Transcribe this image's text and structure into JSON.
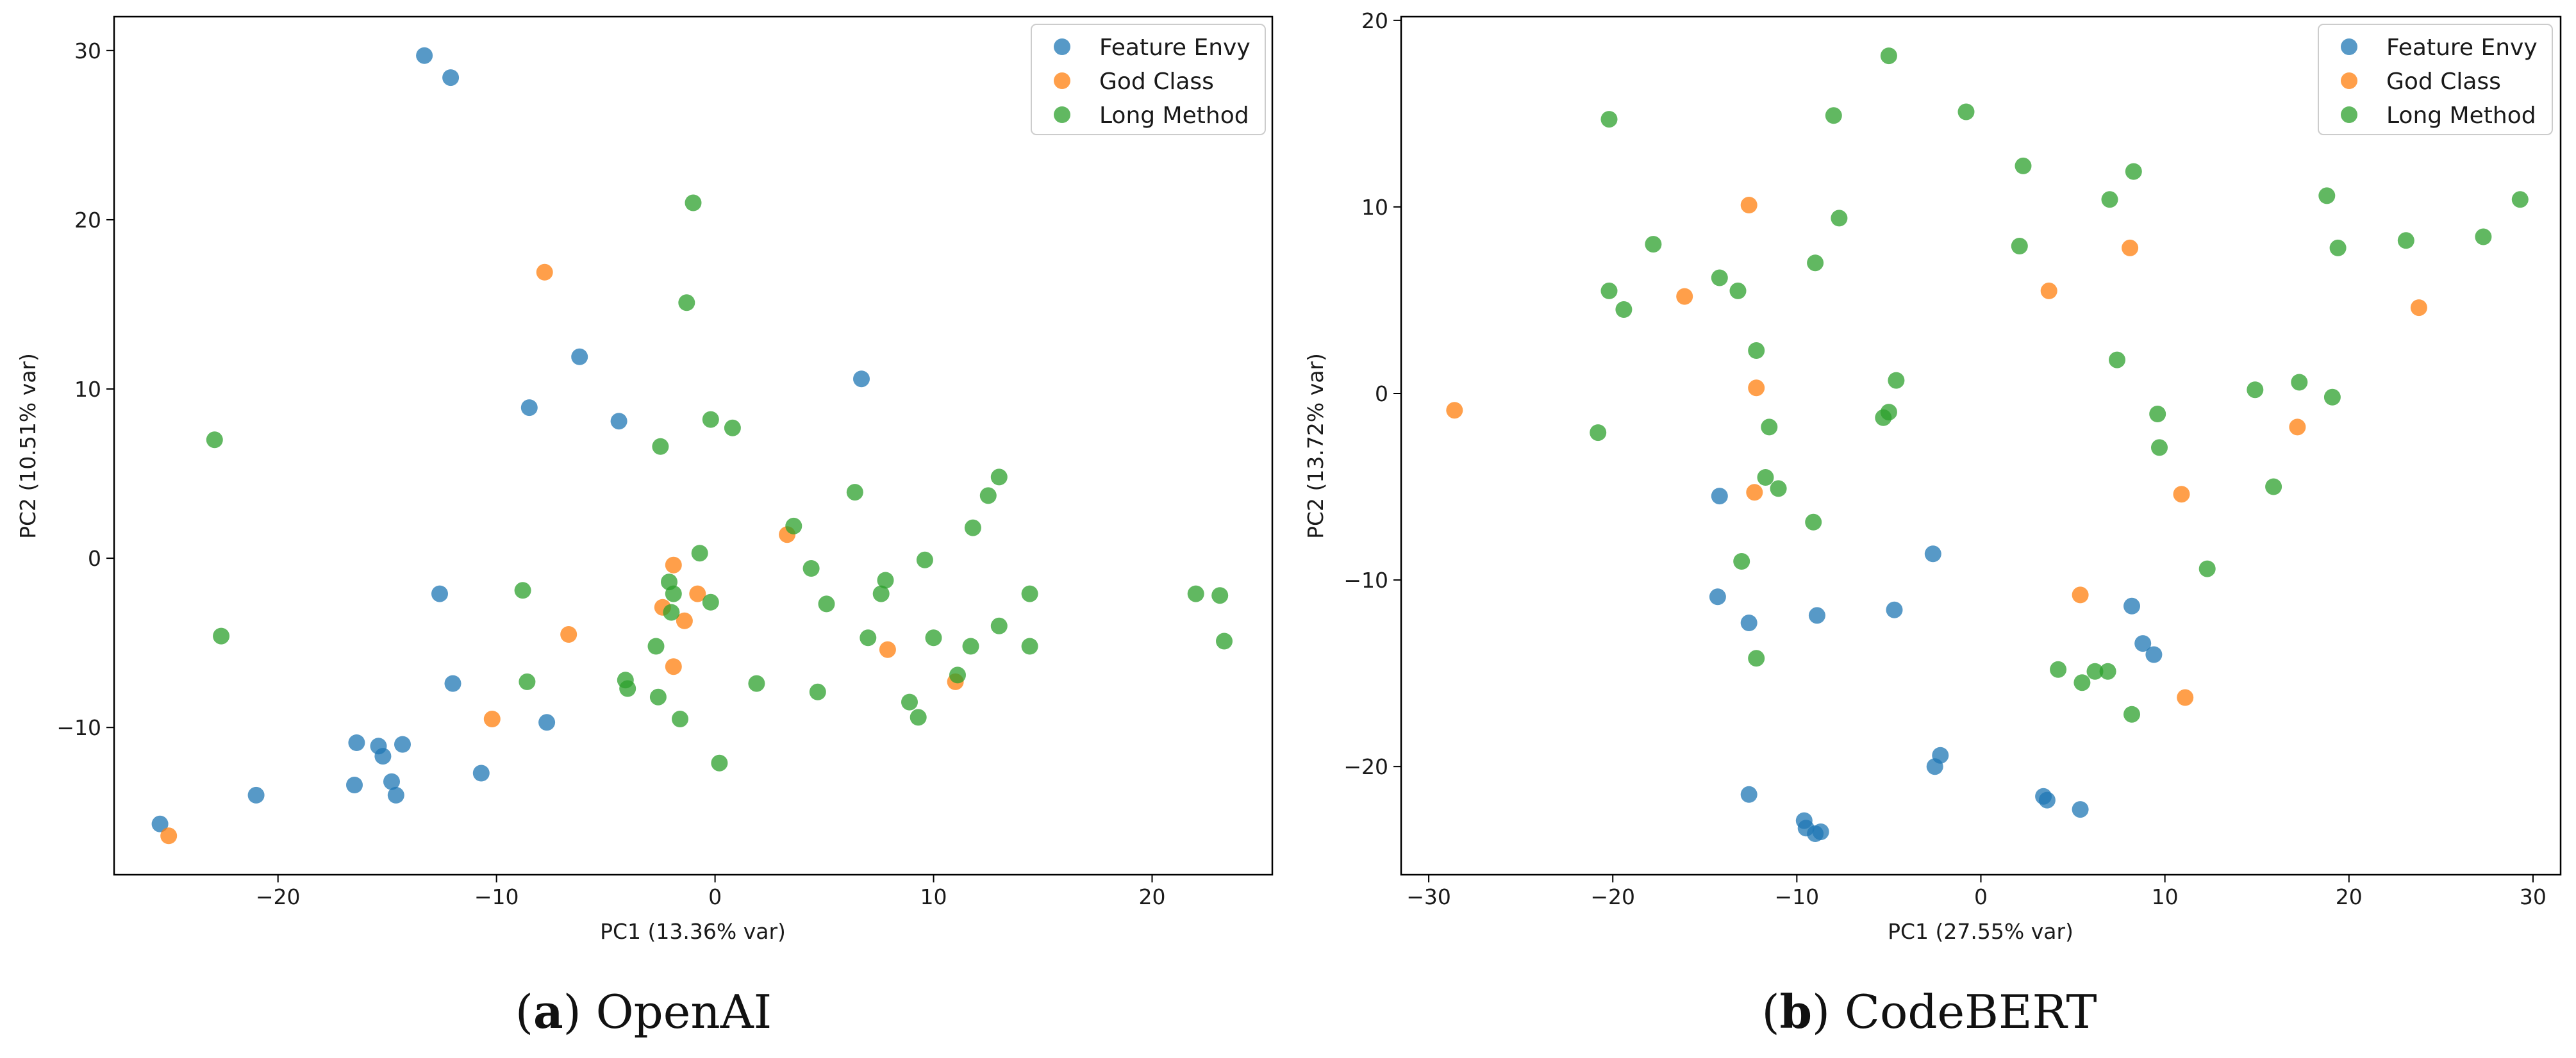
{
  "chart_data": [
    {
      "type": "scatter",
      "caption_letter": "a",
      "caption_text": "OpenAI",
      "title": "",
      "xlabel": "PC1 (13.36% var)",
      "ylabel": "PC2 (10.51% var)",
      "xlim": [
        -27.5,
        25.5
      ],
      "ylim": [
        -18.7,
        32.0
      ],
      "xticks": [
        -20,
        -10,
        0,
        10,
        20
      ],
      "yticks": [
        -10,
        0,
        10,
        20,
        30
      ],
      "grid": false,
      "legend_position": "top-right",
      "series": [
        {
          "name": "Feature Envy",
          "color": "#1f77b4",
          "points": [
            [
              -13.3,
              29.7
            ],
            [
              -12.1,
              28.4
            ],
            [
              -6.2,
              11.9
            ],
            [
              -8.5,
              8.9
            ],
            [
              -4.4,
              8.1
            ],
            [
              6.7,
              10.6
            ],
            [
              -12.6,
              -2.1
            ],
            [
              -12.0,
              -7.4
            ],
            [
              -7.7,
              -9.7
            ],
            [
              -10.7,
              -12.7
            ],
            [
              -16.4,
              -10.9
            ],
            [
              -15.4,
              -11.1
            ],
            [
              -15.2,
              -11.7
            ],
            [
              -14.3,
              -11.0
            ],
            [
              -16.5,
              -13.4
            ],
            [
              -14.8,
              -13.2
            ],
            [
              -14.6,
              -14.0
            ],
            [
              -21.0,
              -14.0
            ],
            [
              -25.4,
              -15.7
            ]
          ]
        },
        {
          "name": "God Class",
          "color": "#ff7f0e",
          "points": [
            [
              -7.8,
              16.9
            ],
            [
              -6.7,
              -4.5
            ],
            [
              -1.9,
              -0.4
            ],
            [
              -0.8,
              -2.1
            ],
            [
              -2.4,
              -2.9
            ],
            [
              -1.4,
              -3.7
            ],
            [
              -1.9,
              -6.4
            ],
            [
              -10.2,
              -9.5
            ],
            [
              3.3,
              1.4
            ],
            [
              7.9,
              -5.4
            ],
            [
              11.0,
              -7.3
            ],
            [
              -25.0,
              -16.4
            ]
          ]
        },
        {
          "name": "Long Method",
          "color": "#2ca02c",
          "points": [
            [
              -1.0,
              21.0
            ],
            [
              -1.3,
              15.1
            ],
            [
              -2.5,
              6.6
            ],
            [
              -0.2,
              8.2
            ],
            [
              0.8,
              7.7
            ],
            [
              -22.9,
              7.0
            ],
            [
              -22.6,
              -4.6
            ],
            [
              -8.8,
              -1.9
            ],
            [
              -0.7,
              0.3
            ],
            [
              3.6,
              1.9
            ],
            [
              6.4,
              3.9
            ],
            [
              4.4,
              -0.6
            ],
            [
              7.8,
              -1.3
            ],
            [
              9.6,
              -0.1
            ],
            [
              11.8,
              1.8
            ],
            [
              12.5,
              3.7
            ],
            [
              13.0,
              4.8
            ],
            [
              -2.1,
              -1.4
            ],
            [
              -1.9,
              -2.1
            ],
            [
              -0.2,
              -2.6
            ],
            [
              -2.0,
              -3.2
            ],
            [
              -2.7,
              -5.2
            ],
            [
              5.1,
              -2.7
            ],
            [
              7.6,
              -2.1
            ],
            [
              7.0,
              -4.7
            ],
            [
              10.0,
              -4.7
            ],
            [
              11.7,
              -5.2
            ],
            [
              13.0,
              -4.0
            ],
            [
              14.4,
              -2.1
            ],
            [
              14.4,
              -5.2
            ],
            [
              -8.6,
              -7.3
            ],
            [
              -4.1,
              -7.2
            ],
            [
              -4.0,
              -7.7
            ],
            [
              -2.6,
              -8.2
            ],
            [
              -1.6,
              -9.5
            ],
            [
              1.9,
              -7.4
            ],
            [
              4.7,
              -7.9
            ],
            [
              8.9,
              -8.5
            ],
            [
              9.3,
              -9.4
            ],
            [
              11.1,
              -6.9
            ],
            [
              0.2,
              -12.1
            ],
            [
              22.0,
              -2.1
            ],
            [
              23.1,
              -2.2
            ],
            [
              23.3,
              -4.9
            ]
          ]
        }
      ]
    },
    {
      "type": "scatter",
      "caption_letter": "b",
      "caption_text": "CodeBERT",
      "title": "",
      "xlabel": "PC1 (27.55% var)",
      "ylabel": "PC2 (13.72% var)",
      "xlim": [
        -31.5,
        31.5
      ],
      "ylim": [
        -25.8,
        20.2
      ],
      "xticks": [
        -30,
        -20,
        -10,
        0,
        10,
        20,
        30
      ],
      "yticks": [
        -20,
        -10,
        0,
        10,
        20
      ],
      "grid": false,
      "legend_position": "top-right",
      "series": [
        {
          "name": "Feature Envy",
          "color": "#1f77b4",
          "points": [
            [
              -14.2,
              -5.5
            ],
            [
              -14.3,
              -10.9
            ],
            [
              -12.6,
              -12.3
            ],
            [
              -8.9,
              -11.9
            ],
            [
              -2.6,
              -8.6
            ],
            [
              -4.7,
              -11.6
            ],
            [
              8.2,
              -11.4
            ],
            [
              8.8,
              -13.4
            ],
            [
              9.4,
              -14.0
            ],
            [
              -2.5,
              -20.0
            ],
            [
              -2.2,
              -19.4
            ],
            [
              3.4,
              -21.6
            ],
            [
              3.6,
              -21.8
            ],
            [
              5.4,
              -22.3
            ],
            [
              -12.6,
              -21.5
            ],
            [
              -9.6,
              -22.9
            ],
            [
              -9.5,
              -23.3
            ],
            [
              -9.0,
              -23.6
            ],
            [
              -8.7,
              -23.5
            ]
          ]
        },
        {
          "name": "God Class",
          "color": "#ff7f0e",
          "points": [
            [
              -28.6,
              -0.9
            ],
            [
              -16.1,
              5.2
            ],
            [
              -12.6,
              10.1
            ],
            [
              -12.2,
              0.3
            ],
            [
              -12.3,
              -5.3
            ],
            [
              3.7,
              5.5
            ],
            [
              8.1,
              7.8
            ],
            [
              23.8,
              4.6
            ],
            [
              17.2,
              -1.8
            ],
            [
              10.9,
              -5.4
            ],
            [
              5.4,
              -10.8
            ],
            [
              11.1,
              -16.3
            ]
          ]
        },
        {
          "name": "Long Method",
          "color": "#2ca02c",
          "points": [
            [
              -20.2,
              14.7
            ],
            [
              -8.0,
              14.9
            ],
            [
              -5.0,
              18.1
            ],
            [
              -0.8,
              15.1
            ],
            [
              2.3,
              12.2
            ],
            [
              8.3,
              11.9
            ],
            [
              7.0,
              10.4
            ],
            [
              18.8,
              10.6
            ],
            [
              29.3,
              10.4
            ],
            [
              -7.7,
              9.4
            ],
            [
              -17.8,
              8.0
            ],
            [
              -9.0,
              7.0
            ],
            [
              2.1,
              7.9
            ],
            [
              23.1,
              8.2
            ],
            [
              27.3,
              8.4
            ],
            [
              19.4,
              7.8
            ],
            [
              -20.2,
              5.5
            ],
            [
              -19.4,
              4.5
            ],
            [
              -14.2,
              6.2
            ],
            [
              -13.2,
              5.5
            ],
            [
              -12.2,
              2.3
            ],
            [
              -4.6,
              0.7
            ],
            [
              -5.0,
              -1.0
            ],
            [
              -5.3,
              -1.3
            ],
            [
              7.4,
              1.8
            ],
            [
              14.9,
              0.2
            ],
            [
              17.3,
              0.6
            ],
            [
              19.1,
              -0.2
            ],
            [
              9.6,
              -1.1
            ],
            [
              9.7,
              -2.9
            ],
            [
              -20.8,
              -2.1
            ],
            [
              -11.5,
              -1.8
            ],
            [
              -11.7,
              -4.5
            ],
            [
              -11.0,
              -5.1
            ],
            [
              -9.1,
              -6.9
            ],
            [
              -13.0,
              -9.0
            ],
            [
              15.9,
              -5.0
            ],
            [
              12.3,
              -9.4
            ],
            [
              -12.2,
              -14.2
            ],
            [
              4.2,
              -14.8
            ],
            [
              6.2,
              -14.9
            ],
            [
              6.9,
              -14.9
            ],
            [
              5.5,
              -15.5
            ],
            [
              8.2,
              -17.2
            ]
          ]
        }
      ]
    }
  ]
}
